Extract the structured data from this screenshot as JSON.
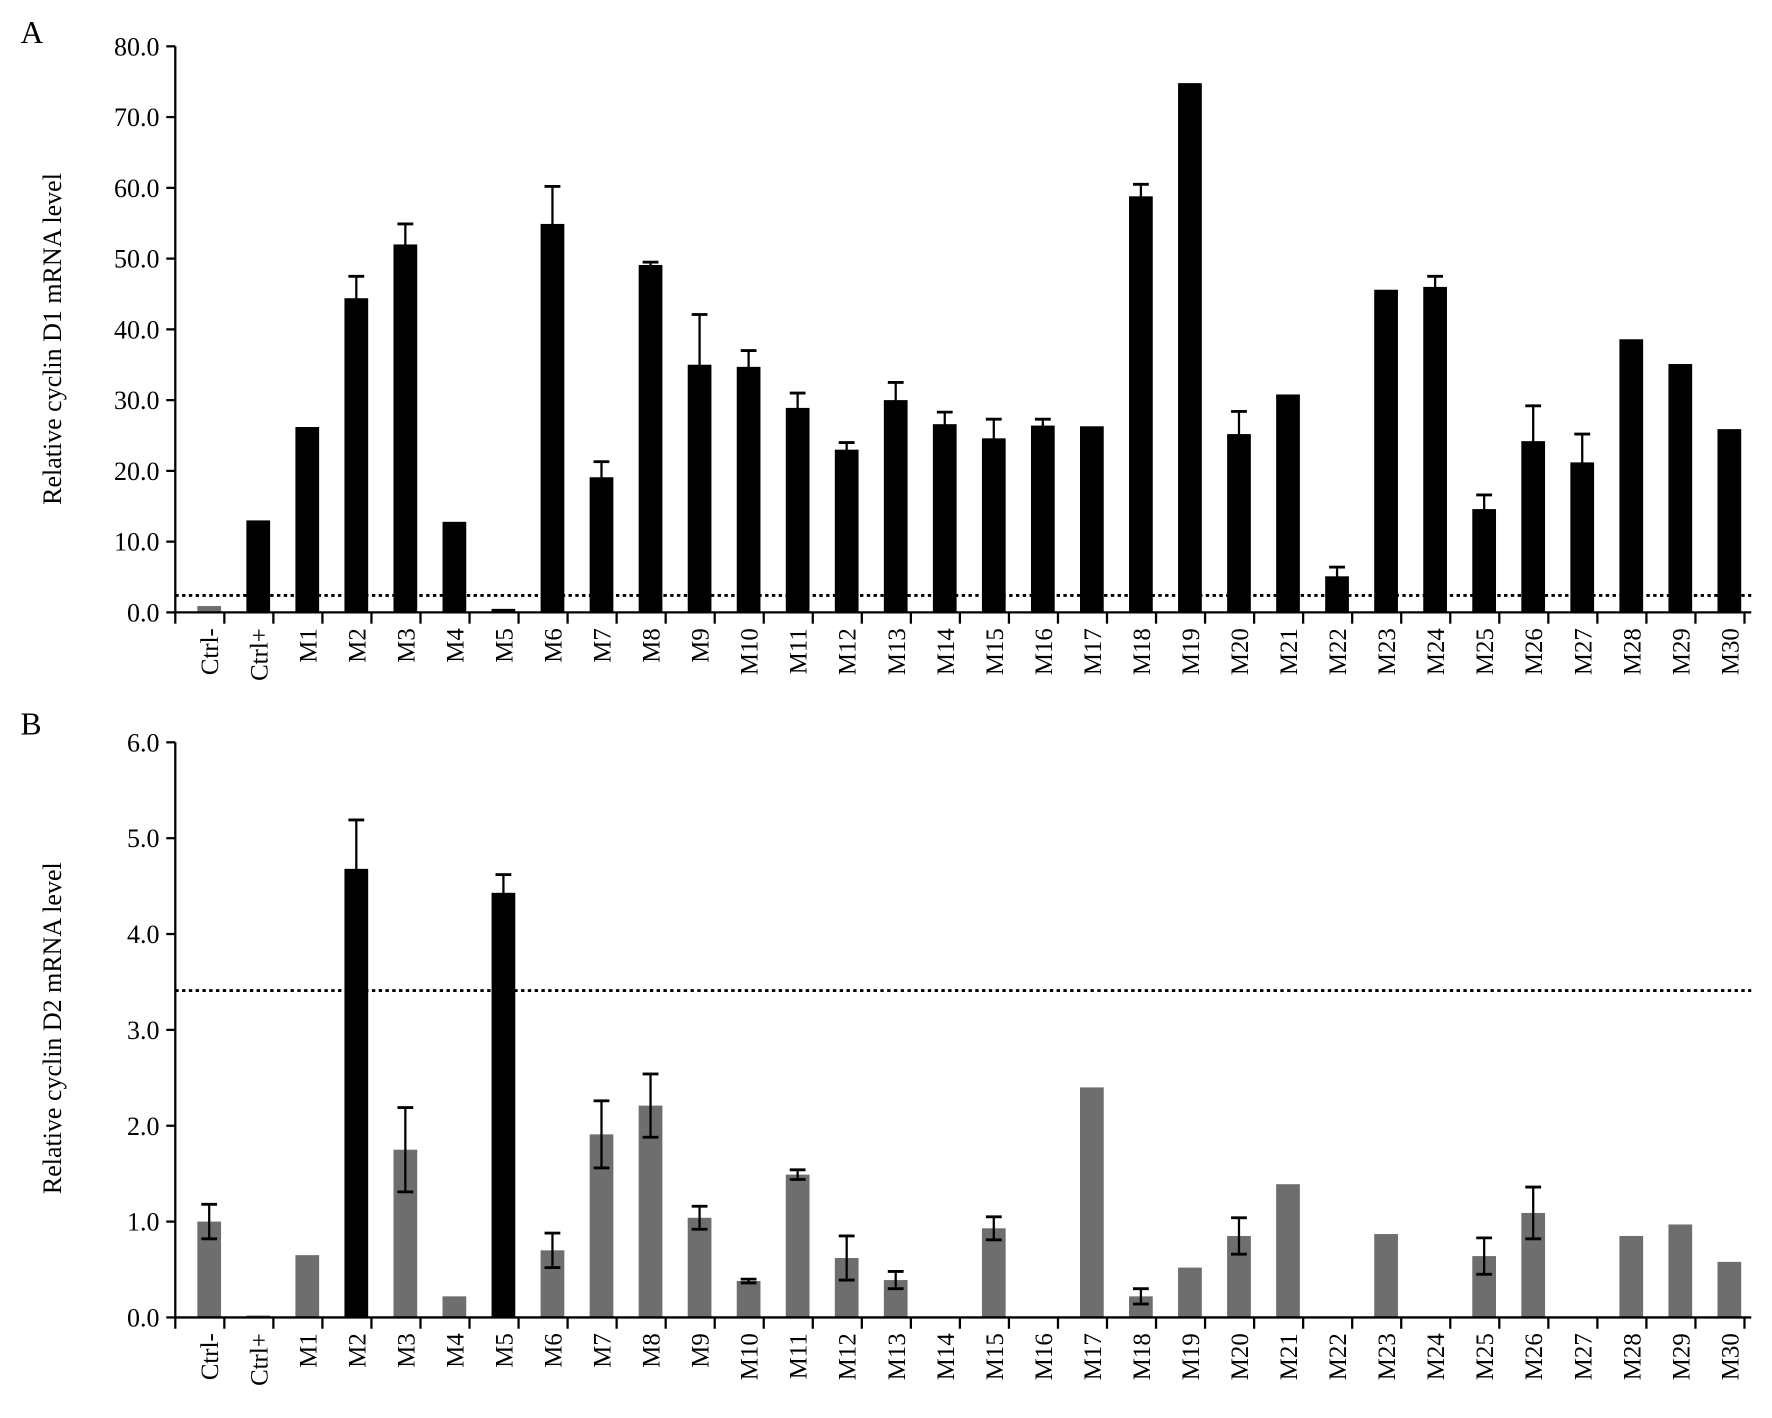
{
  "chart_data": [
    {
      "panel_label": "A",
      "type": "bar",
      "ylabel": "Relative cyclin D1 mRNA level",
      "ylim": [
        0,
        80
      ],
      "yticks": [
        "0.0",
        "10.0",
        "20.0",
        "30.0",
        "40.0",
        "50.0",
        "60.0",
        "70.0",
        "80.0"
      ],
      "threshold_line": 2.4,
      "grid": false,
      "categories": [
        "Ctrl-",
        "Ctrl+",
        "M1",
        "M2",
        "M3",
        "M4",
        "M5",
        "M6",
        "M7",
        "M8",
        "M9",
        "M10",
        "M11",
        "M12",
        "M13",
        "M14",
        "M15",
        "M16",
        "M17",
        "M18",
        "M19",
        "M20",
        "M21",
        "M22",
        "M23",
        "M24",
        "M25",
        "M26",
        "M27",
        "M28",
        "M29",
        "M30"
      ],
      "values": [
        0.9,
        13.0,
        26.2,
        44.4,
        52.0,
        12.8,
        0.5,
        54.9,
        19.1,
        49.1,
        35.0,
        34.7,
        28.9,
        23.0,
        30.0,
        26.6,
        24.6,
        26.4,
        26.3,
        58.8,
        74.8,
        25.2,
        30.8,
        5.1,
        45.6,
        46.0,
        14.6,
        24.2,
        21.2,
        38.6,
        35.1,
        25.9
      ],
      "errors": [
        0,
        0,
        0,
        3.1,
        2.9,
        0,
        0,
        5.3,
        2.2,
        0.4,
        7.1,
        2.3,
        2.1,
        1.0,
        2.5,
        1.7,
        2.7,
        0.9,
        0,
        1.7,
        0,
        3.2,
        0,
        1.3,
        0,
        1.5,
        2.0,
        5.0,
        4.0,
        0,
        0,
        0
      ],
      "highlight": [
        false,
        true,
        true,
        true,
        true,
        true,
        true,
        true,
        true,
        true,
        true,
        true,
        true,
        true,
        true,
        true,
        true,
        true,
        true,
        true,
        true,
        true,
        true,
        true,
        true,
        true,
        true,
        true,
        true,
        true,
        true,
        true
      ]
    },
    {
      "panel_label": "B",
      "type": "bar",
      "ylabel": "Relative cyclin D2 mRNA level",
      "ylim": [
        0,
        6
      ],
      "yticks": [
        "0.0",
        "1.0",
        "2.0",
        "3.0",
        "4.0",
        "5.0",
        "6.0"
      ],
      "threshold_line": 3.41,
      "grid": false,
      "categories": [
        "Ctrl-",
        "Ctrl+",
        "M1",
        "M2",
        "M3",
        "M4",
        "M5",
        "M6",
        "M7",
        "M8",
        "M9",
        "M10",
        "M11",
        "M12",
        "M13",
        "M14",
        "M15",
        "M16",
        "M17",
        "M18",
        "M19",
        "M20",
        "M21",
        "M22",
        "M23",
        "M24",
        "M25",
        "M26",
        "M27",
        "M28",
        "M29",
        "M30"
      ],
      "values": [
        1.0,
        0.02,
        0.65,
        4.68,
        1.75,
        0.22,
        4.43,
        0.7,
        1.91,
        2.21,
        1.04,
        0.38,
        1.49,
        0.62,
        0.39,
        0.01,
        0.93,
        0.01,
        2.4,
        0.22,
        0.52,
        0.85,
        1.39,
        0,
        0.87,
        0,
        0.64,
        1.09,
        0,
        0.85,
        0.97,
        0.58
      ],
      "errors": [
        0.18,
        0,
        0,
        0.51,
        0.44,
        0,
        0.19,
        0.18,
        0.35,
        0.33,
        0.12,
        0.02,
        0.05,
        0.23,
        0.09,
        0,
        0.12,
        0,
        0,
        0.08,
        0,
        0.19,
        0,
        0,
        0,
        0,
        0.19,
        0.27,
        0,
        0,
        0,
        0
      ],
      "highlight": [
        false,
        false,
        false,
        true,
        false,
        false,
        true,
        false,
        false,
        false,
        false,
        false,
        false,
        false,
        false,
        false,
        false,
        false,
        false,
        false,
        false,
        false,
        false,
        false,
        false,
        false,
        false,
        false,
        false,
        false,
        false,
        false
      ]
    }
  ],
  "colors": {
    "highlight": "#000000",
    "normal": "#6e6e6e",
    "axis": "#000000"
  }
}
